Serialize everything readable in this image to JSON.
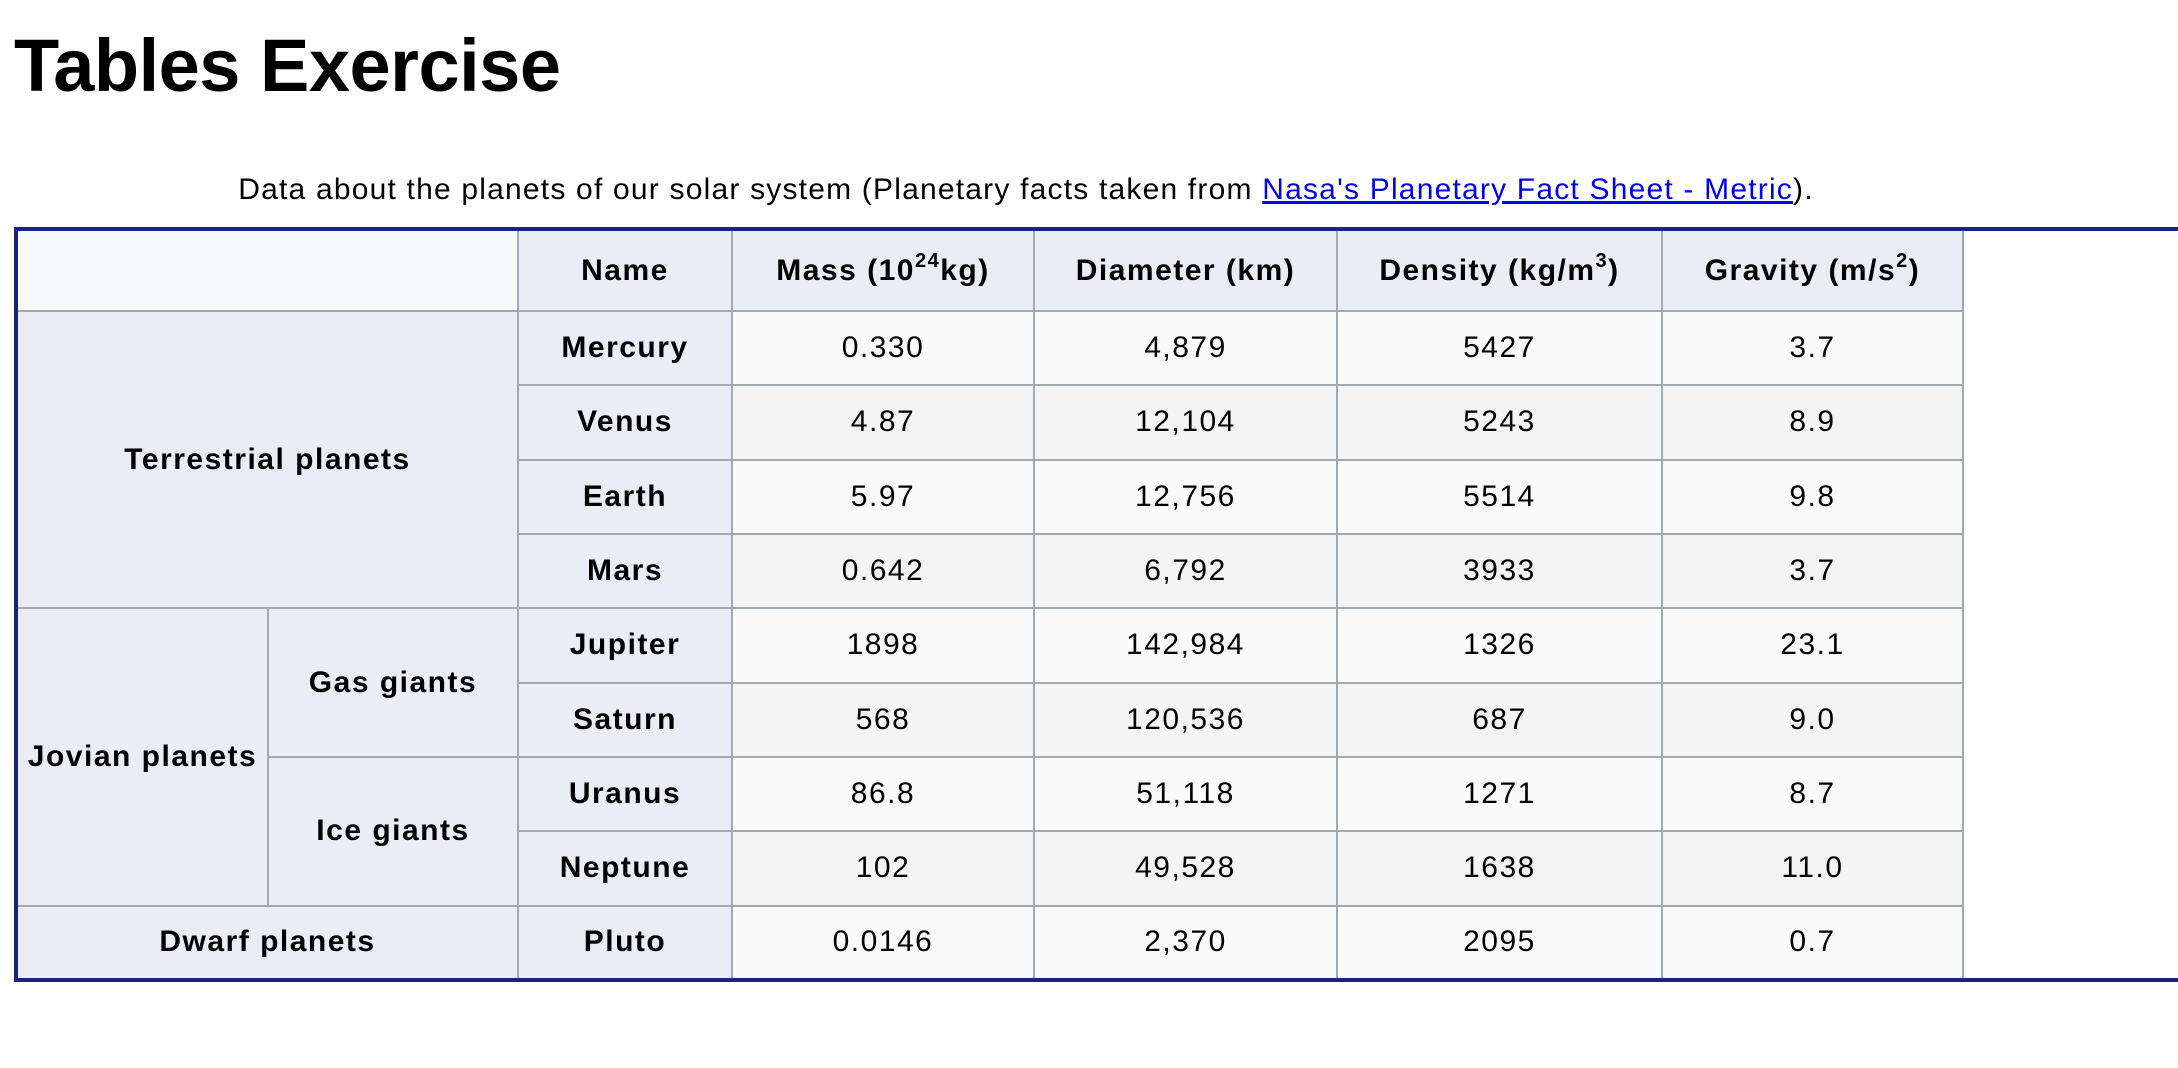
{
  "title": "Tables Exercise",
  "caption": {
    "text_before": "Data about the planets of our solar system (Planetary facts taken from ",
    "link_text": "Nasa's Planetary Fact Sheet - Metric",
    "text_after": ")."
  },
  "table": {
    "headers": {
      "name": "Name",
      "mass": {
        "base": "Mass (10",
        "sup": "24",
        "after": "kg)"
      },
      "diameter": "Diameter (km)",
      "density": {
        "base": "Density (kg/m",
        "sup": "3",
        "after": ")"
      },
      "gravity": {
        "base": "Gravity (m/s",
        "sup": "2",
        "after": ")"
      }
    },
    "groups": {
      "terrestrial": "Terrestrial planets",
      "jovian": "Jovian planets",
      "gas_giants": "Gas giants",
      "ice_giants": "Ice giants",
      "dwarf": "Dwarf planets"
    },
    "rows": [
      {
        "name": "Mercury",
        "mass": "0.330",
        "diameter": "4,879",
        "density": "5427",
        "gravity": "3.7"
      },
      {
        "name": "Venus",
        "mass": "4.87",
        "diameter": "12,104",
        "density": "5243",
        "gravity": "8.9"
      },
      {
        "name": "Earth",
        "mass": "5.97",
        "diameter": "12,756",
        "density": "5514",
        "gravity": "9.8"
      },
      {
        "name": "Mars",
        "mass": "0.642",
        "diameter": "6,792",
        "density": "3933",
        "gravity": "3.7"
      },
      {
        "name": "Jupiter",
        "mass": "1898",
        "diameter": "142,984",
        "density": "1326",
        "gravity": "23.1"
      },
      {
        "name": "Saturn",
        "mass": "568",
        "diameter": "120,536",
        "density": "687",
        "gravity": "9.0"
      },
      {
        "name": "Uranus",
        "mass": "86.8",
        "diameter": "51,118",
        "density": "1271",
        "gravity": "8.7"
      },
      {
        "name": "Neptune",
        "mass": "102",
        "diameter": "49,528",
        "density": "1638",
        "gravity": "11.0"
      },
      {
        "name": "Pluto",
        "mass": "0.0146",
        "diameter": "2,370",
        "density": "2095",
        "gravity": "0.7"
      }
    ]
  }
}
